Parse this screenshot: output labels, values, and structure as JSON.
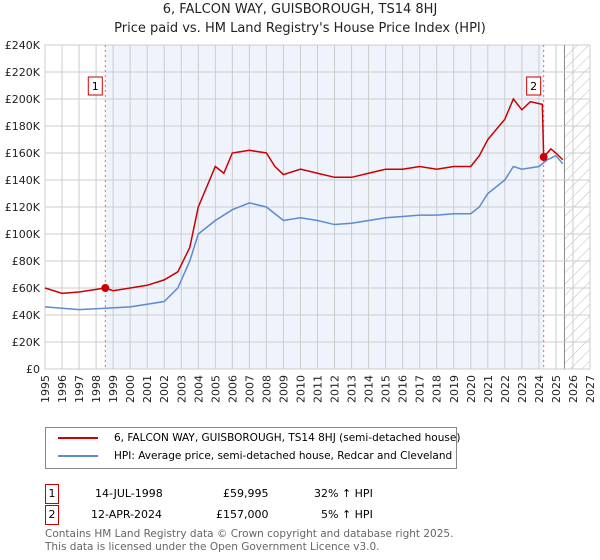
{
  "title": "6, FALCON WAY, GUISBOROUGH, TS14 8HJ",
  "subtitle": "Price paid vs. HM Land Registry's House Price Index (HPI)",
  "chart_data": {
    "type": "line",
    "title": "6, FALCON WAY, GUISBOROUGH, TS14 8HJ",
    "subtitle": "Price paid vs. HM Land Registry's House Price Index (HPI)",
    "xlim": [
      1995,
      2027
    ],
    "ylim": [
      0,
      240000
    ],
    "x_ticks": [
      "1995",
      "1996",
      "1997",
      "1998",
      "1999",
      "2000",
      "2001",
      "2002",
      "2003",
      "2004",
      "2005",
      "2006",
      "2007",
      "2008",
      "2009",
      "2010",
      "2011",
      "2012",
      "2013",
      "2014",
      "2015",
      "2016",
      "2017",
      "2018",
      "2019",
      "2020",
      "2021",
      "2022",
      "2023",
      "2024",
      "2025",
      "2026",
      "2027"
    ],
    "y_ticks": [
      "£0",
      "£20K",
      "£40K",
      "£60K",
      "£80K",
      "£100K",
      "£120K",
      "£140K",
      "£160K",
      "£180K",
      "£200K",
      "£220K",
      "£240K"
    ],
    "grid": true,
    "series": [
      {
        "name": "6, FALCON WAY, GUISBOROUGH, TS14 8HJ (semi-detached house)",
        "color": "#cc0000",
        "x": [
          1995,
          1996,
          1997,
          1998.54,
          1999,
          2000,
          2001,
          2002,
          2002.8,
          2003.5,
          2004,
          2004.5,
          2005,
          2005.5,
          2006,
          2007,
          2008,
          2008.5,
          2009,
          2010,
          2011,
          2012,
          2013,
          2014,
          2015,
          2016,
          2017,
          2018,
          2019,
          2020,
          2020.5,
          2021,
          2022,
          2022.5,
          2023,
          2023.5,
          2024.2,
          2024.28,
          2024.7,
          2025,
          2025.4
        ],
        "y": [
          60000,
          56000,
          57000,
          59995,
          58000,
          60000,
          62000,
          66000,
          72000,
          90000,
          120000,
          135000,
          150000,
          145000,
          160000,
          162000,
          160000,
          150000,
          144000,
          148000,
          145000,
          142000,
          142000,
          145000,
          148000,
          148000,
          150000,
          148000,
          150000,
          150000,
          158000,
          170000,
          185000,
          200000,
          192000,
          198000,
          196000,
          157000,
          163000,
          160000,
          155000
        ]
      },
      {
        "name": "HPI: Average price, semi-detached house, Redcar and Cleveland",
        "color": "#5b8bd0",
        "x": [
          1995,
          1997,
          1998.54,
          2000,
          2001,
          2002,
          2002.8,
          2003.5,
          2004,
          2005,
          2006,
          2007,
          2008,
          2009,
          2010,
          2011,
          2012,
          2013,
          2014,
          2015,
          2016,
          2017,
          2018,
          2019,
          2020,
          2020.5,
          2021,
          2022,
          2022.5,
          2023,
          2024,
          2024.5,
          2025,
          2025.4
        ],
        "y": [
          46000,
          44000,
          45000,
          46000,
          48000,
          50000,
          60000,
          80000,
          100000,
          110000,
          118000,
          123000,
          120000,
          110000,
          112000,
          110000,
          107000,
          108000,
          110000,
          112000,
          113000,
          114000,
          114000,
          115000,
          115000,
          120000,
          130000,
          140000,
          150000,
          148000,
          150000,
          155000,
          158000,
          152000
        ]
      }
    ],
    "annotations": [
      {
        "label": "1",
        "x": 1998.54,
        "y": 59995
      },
      {
        "label": "2",
        "x": 2024.28,
        "y": 157000
      }
    ],
    "forecast_hatch_from": 2025.5,
    "legend": "bottom"
  },
  "legend": {
    "items": [
      "6, FALCON WAY, GUISBOROUGH, TS14 8HJ (semi-detached house)",
      "HPI: Average price, semi-detached house, Redcar and Cleveland"
    ]
  },
  "sales": [
    {
      "n": "1",
      "date": "14-JUL-1998",
      "price": "£59,995",
      "hpi": "32% ↑ HPI"
    },
    {
      "n": "2",
      "date": "12-APR-2024",
      "price": "£157,000",
      "hpi": "5% ↑ HPI"
    }
  ],
  "footer": [
    "Contains HM Land Registry data © Crown copyright and database right 2025.",
    "This data is licensed under the Open Government Licence v3.0."
  ]
}
